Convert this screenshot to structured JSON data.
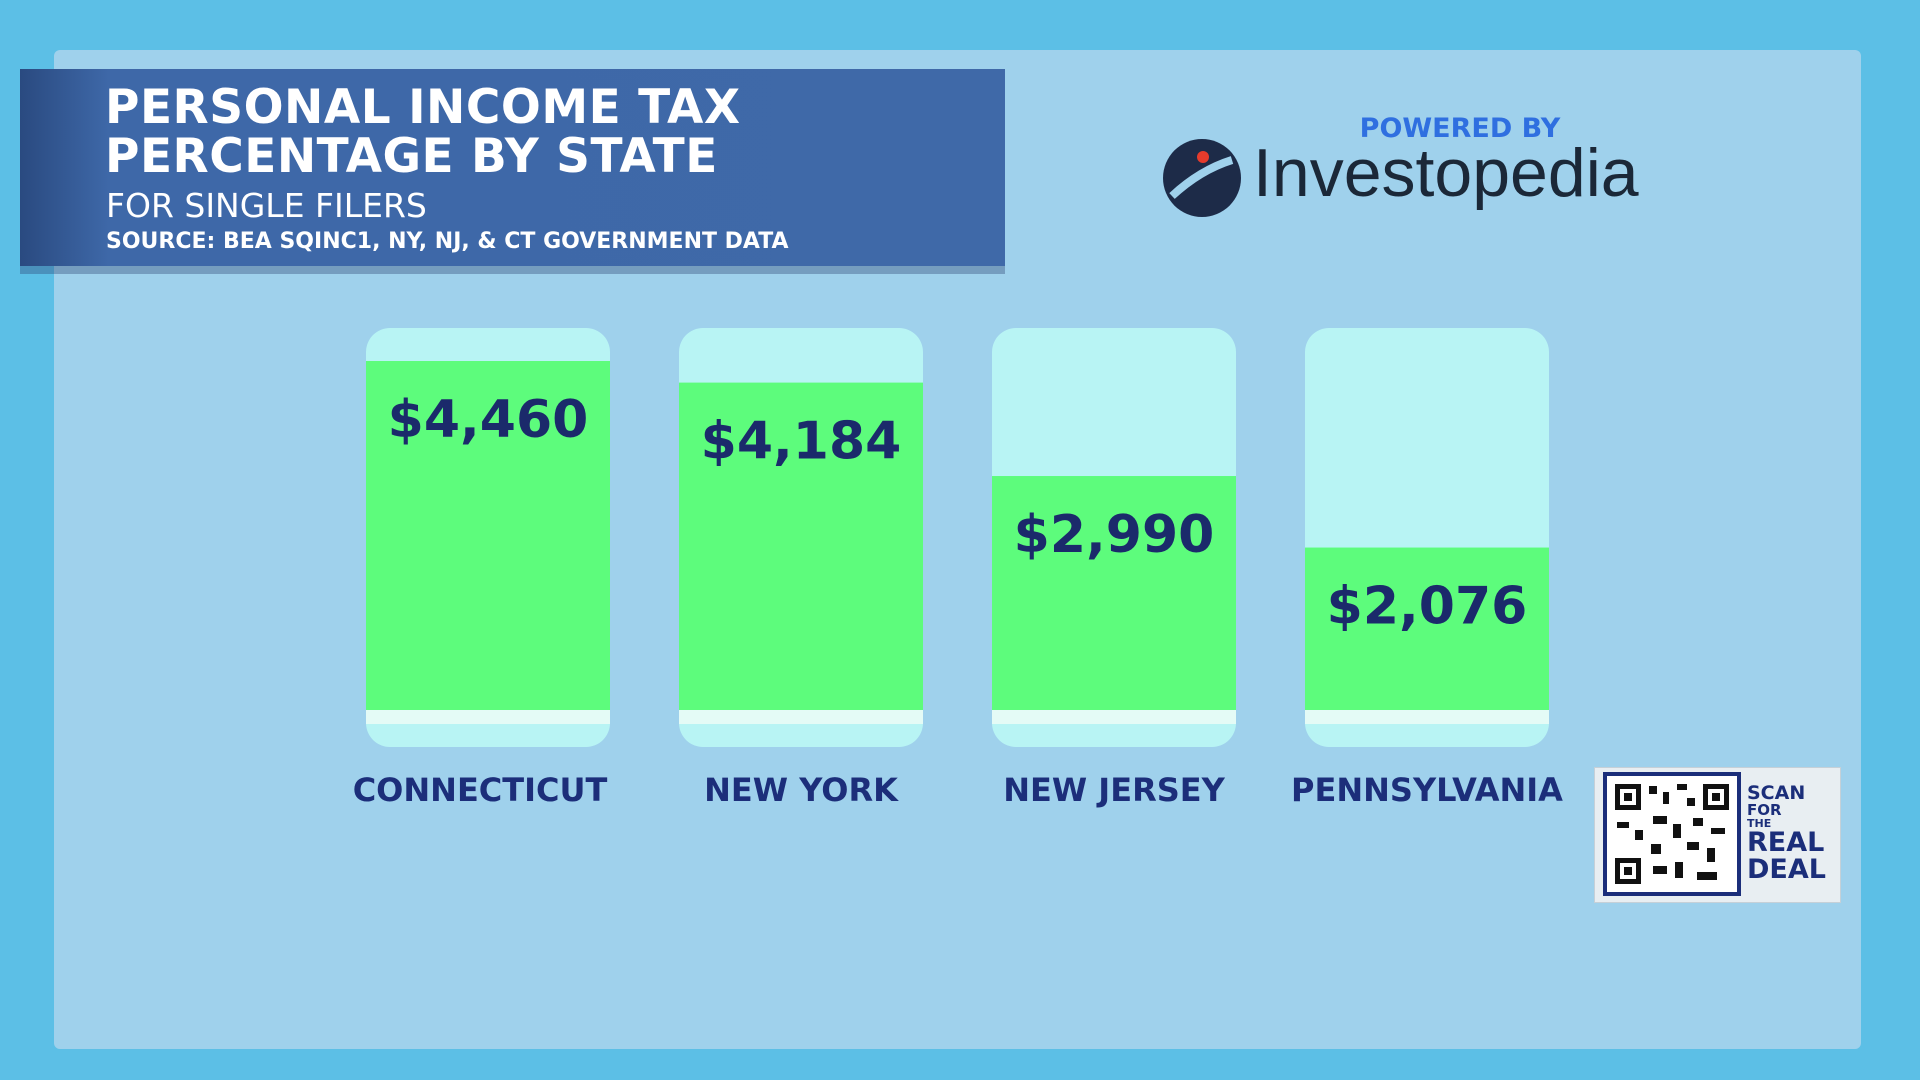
{
  "header": {
    "title": "PERSONAL INCOME TAX\nPERCENTAGE BY STATE",
    "subtitle": "FOR SINGLE FILERS",
    "source": "SOURCE: BEA SQINC1, NY, NJ, & CT GOVERNMENT DATA"
  },
  "branding": {
    "powered_by": "POWERED BY",
    "name": "Investopedia"
  },
  "qr": {
    "lines": [
      "SCAN",
      "FOR",
      "THE",
      "REAL",
      "DEAL"
    ]
  },
  "chart_data": {
    "type": "bar",
    "categories": [
      "CONNECTICUT",
      "NEW YORK",
      "NEW JERSEY",
      "PENNSYLVANIA"
    ],
    "values": [
      4460,
      4184,
      2990,
      2076
    ],
    "value_labels": [
      "$4,460",
      "$4,184",
      "$2,990",
      "$2,076"
    ],
    "color": "#5dfc7c"
  }
}
